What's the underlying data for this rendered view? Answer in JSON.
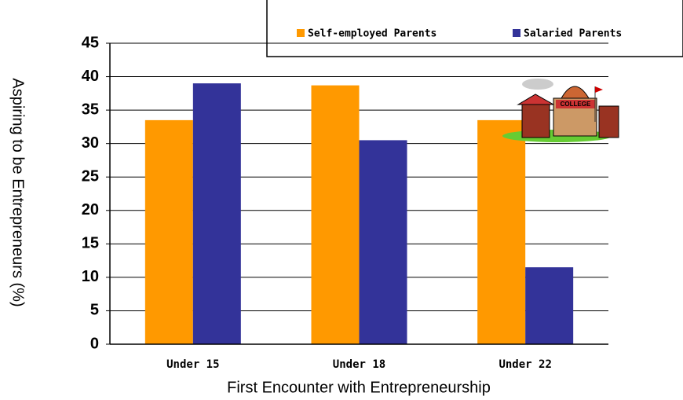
{
  "chart_data": {
    "type": "bar",
    "x_label": "First Encounter with Entrepreneurship",
    "y_label": "Aspiring to be Entrepreneurs (%)",
    "categories": [
      "Under 15",
      "Under 18",
      "Under 22"
    ],
    "series": [
      {
        "name": "Self-employed Parents",
        "color": "#ff9900",
        "values": [
          33.5,
          38.7,
          33.5
        ]
      },
      {
        "name": "Salaried Parents",
        "color": "#333399",
        "values": [
          39,
          30.5,
          11.5
        ]
      }
    ],
    "ylim": [
      0,
      45
    ],
    "yticks": [
      0,
      5,
      10,
      15,
      20,
      25,
      30,
      35,
      40,
      45
    ],
    "grid": true,
    "legend": "top",
    "annotations": [
      {
        "text": "COLLEGE"
      }
    ]
  }
}
